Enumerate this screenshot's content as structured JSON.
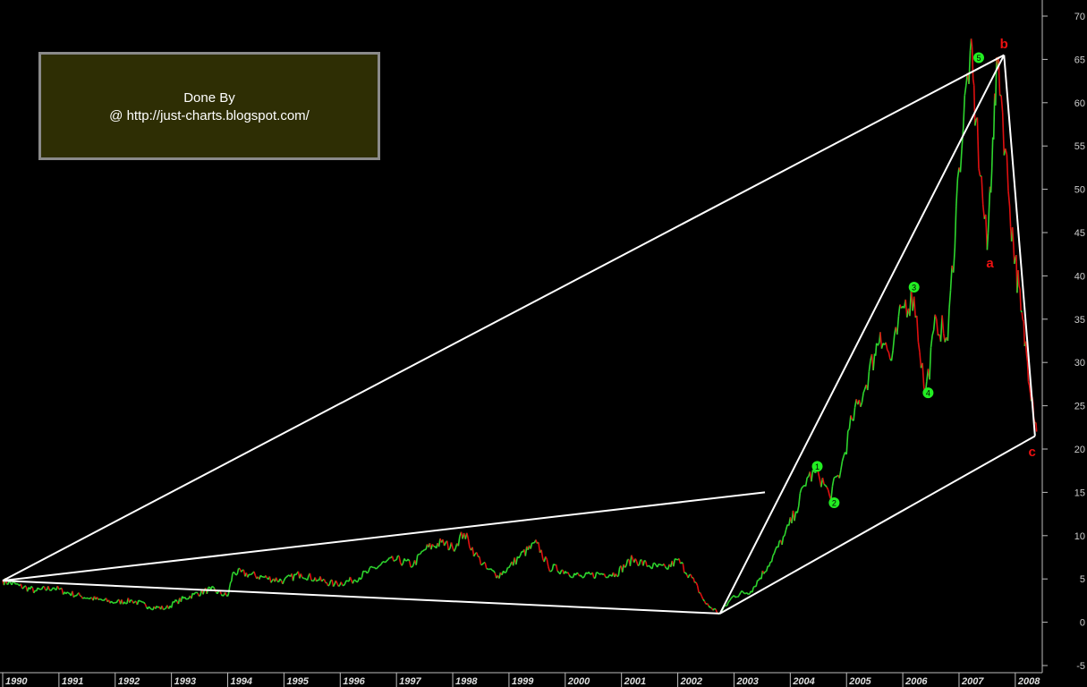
{
  "annotation": {
    "line1": "Done By",
    "line2": "@ http://just-charts.blogspot.com/"
  },
  "colors": {
    "background": "#000000",
    "price_up": "#2ed52e",
    "price_down": "#e01010",
    "trend_lines": "#ffffff",
    "wave_label": "#22ee22",
    "corrective_label": "#ee1111"
  },
  "chart_data": {
    "type": "line",
    "title": "",
    "xlabel": "",
    "ylabel": "",
    "x_ticks": [
      "1990",
      "1991",
      "1992",
      "1993",
      "1994",
      "1995",
      "1996",
      "1997",
      "1998",
      "1999",
      "2000",
      "2001",
      "2002",
      "2003",
      "2004",
      "2005",
      "2006",
      "2007",
      "2008"
    ],
    "y_ticks": [
      70,
      65,
      60,
      55,
      50,
      45,
      40,
      35,
      30,
      25,
      20,
      15,
      10,
      5,
      0,
      -5
    ],
    "xlim": [
      1990.0,
      2008.4
    ],
    "ylim": [
      -5,
      70
    ],
    "grid": false,
    "series": [
      {
        "x": [
          1990.0,
          1990.3,
          1990.6,
          1990.9,
          1991.1,
          1991.4,
          1991.7,
          1992.0,
          1992.3,
          1992.6,
          1992.9,
          1993.1,
          1993.4,
          1993.7,
          1994.0,
          1994.1,
          1994.4,
          1994.7,
          1995.0,
          1995.3,
          1995.6,
          1995.9,
          1996.2,
          1996.5,
          1996.8,
          1997.0,
          1997.3,
          1997.5,
          1997.8,
          1998.0,
          1998.2,
          1998.4,
          1998.6,
          1998.8,
          1999.0,
          1999.2,
          1999.5,
          1999.7,
          2000.0,
          2000.3,
          2000.6,
          2000.9,
          2001.2,
          2001.5,
          2001.8,
          2002.0,
          2002.3,
          2002.5,
          2002.75,
          2003.0,
          2003.3,
          2003.6,
          2003.9,
          2004.1,
          2004.3,
          2004.5,
          2004.7,
          2004.9,
          2005.1,
          2005.3,
          2005.5,
          2005.6,
          2005.8,
          2006.0,
          2006.2,
          2006.4,
          2006.6,
          2006.8,
          2007.0,
          2007.2,
          2007.3,
          2007.5,
          2007.6,
          2007.7,
          2007.9,
          2008.0,
          2008.1,
          2008.2,
          2008.3,
          2008.38
        ],
        "y": [
          4.8,
          4.2,
          3.6,
          4.0,
          3.5,
          3.0,
          2.6,
          2.3,
          2.5,
          1.8,
          1.6,
          2.4,
          3.2,
          3.8,
          3.0,
          5.8,
          5.5,
          5.1,
          4.8,
          5.6,
          4.9,
          4.4,
          4.8,
          5.8,
          6.9,
          7.2,
          6.6,
          8.4,
          9.2,
          8.6,
          10.3,
          7.9,
          6.2,
          5.4,
          6.3,
          7.7,
          9.1,
          6.4,
          5.9,
          5.2,
          5.6,
          5.6,
          7.3,
          6.5,
          6.2,
          7.2,
          4.6,
          2.1,
          1.0,
          3.1,
          3.6,
          6.5,
          10.0,
          12.8,
          16.7,
          17.2,
          14.6,
          17.6,
          23.4,
          26.5,
          31.0,
          33.5,
          30.2,
          36.5,
          37.6,
          26.3,
          35.0,
          32.5,
          52.5,
          66.0,
          58.0,
          43.0,
          56.0,
          65.3,
          48.0,
          42.0,
          36.0,
          31.0,
          26.0,
          22.0
        ]
      }
    ],
    "trend_lines": [
      {
        "from": [
          1990.0,
          4.8
        ],
        "to": [
          2007.8,
          65.5
        ]
      },
      {
        "from": [
          1990.0,
          4.8
        ],
        "to": [
          2002.75,
          1.0
        ]
      },
      {
        "from": [
          1990.0,
          4.8
        ],
        "to": [
          2003.55,
          15.0
        ]
      },
      {
        "from": [
          2002.75,
          1.0
        ],
        "to": [
          2007.8,
          65.5
        ]
      },
      {
        "from": [
          2002.75,
          1.0
        ],
        "to": [
          2008.35,
          21.5
        ]
      },
      {
        "from": [
          2007.8,
          65.5
        ],
        "to": [
          2008.35,
          21.5
        ]
      }
    ],
    "wave_labels": [
      {
        "text": "1",
        "x": 2004.48,
        "y": 18.0
      },
      {
        "text": "2",
        "x": 2004.78,
        "y": 13.8
      },
      {
        "text": "3",
        "x": 2006.2,
        "y": 38.7
      },
      {
        "text": "4",
        "x": 2006.45,
        "y": 26.5
      },
      {
        "text": "5",
        "x": 2007.35,
        "y": 65.2
      }
    ],
    "corrective_labels": [
      {
        "text": "a",
        "x": 2007.55,
        "y": 41.5
      },
      {
        "text": "b",
        "x": 2007.8,
        "y": 66.8
      },
      {
        "text": "c",
        "x": 2008.3,
        "y": 19.7
      }
    ]
  }
}
